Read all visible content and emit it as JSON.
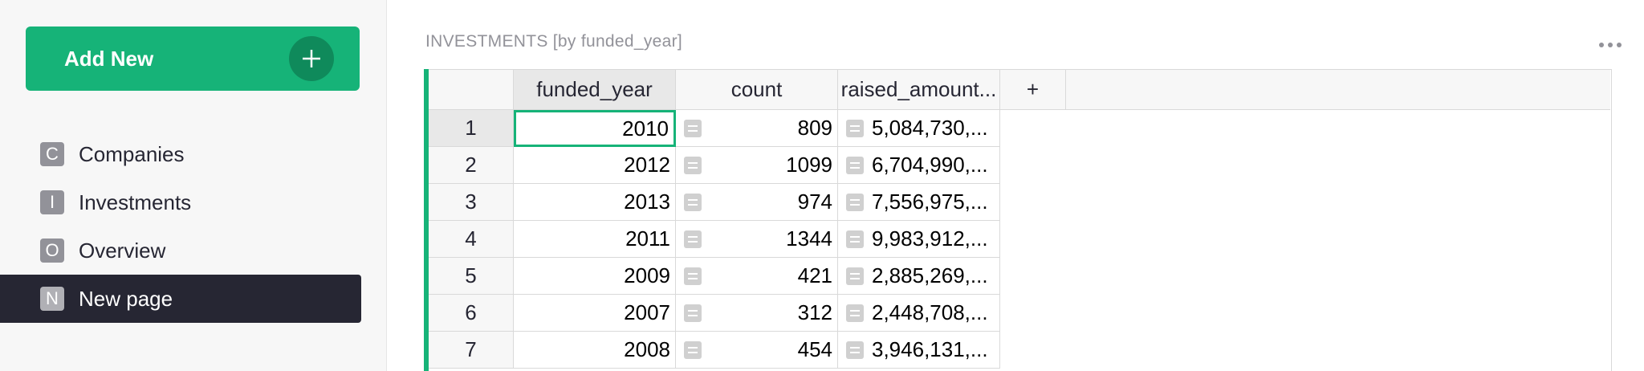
{
  "sidebar": {
    "add_new_label": "Add New",
    "pages": [
      {
        "initial": "C",
        "label": "Companies",
        "active": false
      },
      {
        "initial": "I",
        "label": "Investments",
        "active": false
      },
      {
        "initial": "O",
        "label": "Overview",
        "active": false
      },
      {
        "initial": "N",
        "label": "New page",
        "active": true
      }
    ]
  },
  "main": {
    "section_title": "INVESTMENTS [by funded_year]",
    "grid": {
      "columns": [
        "funded_year",
        "count",
        "raised_amount..."
      ],
      "add_column_label": "+",
      "rows": [
        {
          "num": "1",
          "funded_year": "2010",
          "count": "809",
          "raised_amount": "5,084,730,..."
        },
        {
          "num": "2",
          "funded_year": "2012",
          "count": "1099",
          "raised_amount": "6,704,990,..."
        },
        {
          "num": "3",
          "funded_year": "2013",
          "count": "974",
          "raised_amount": "7,556,975,..."
        },
        {
          "num": "4",
          "funded_year": "2011",
          "count": "1344",
          "raised_amount": "9,983,912,..."
        },
        {
          "num": "5",
          "funded_year": "2009",
          "count": "421",
          "raised_amount": "2,885,269,..."
        },
        {
          "num": "6",
          "funded_year": "2007",
          "count": "312",
          "raised_amount": "2,448,708,..."
        },
        {
          "num": "7",
          "funded_year": "2008",
          "count": "454",
          "raised_amount": "3,946,131,..."
        }
      ]
    }
  },
  "colors": {
    "accent": "#16b378",
    "accent_dark": "#0f8a5b",
    "active_page_bg": "#262633"
  },
  "icons": {
    "add_new": "plus-icon",
    "more": "more-horizontal-icon",
    "reference": "reference-column-icon"
  }
}
